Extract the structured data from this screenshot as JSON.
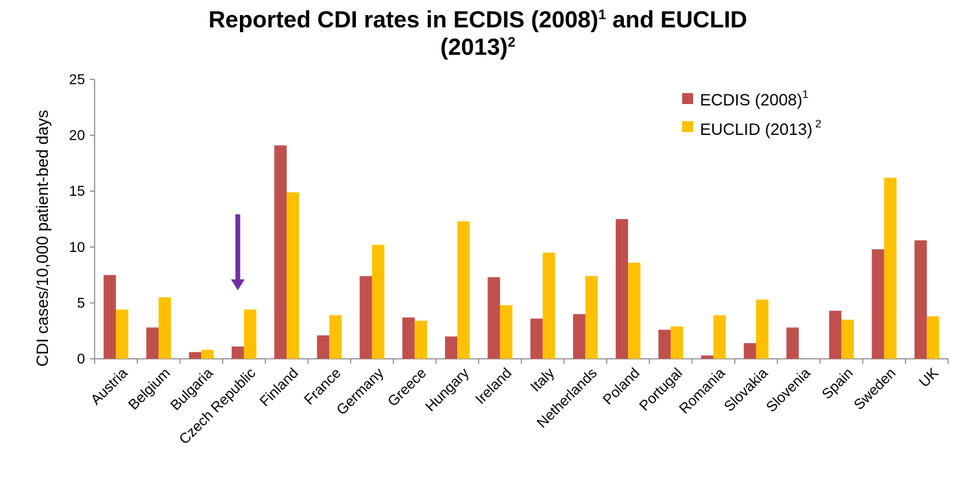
{
  "chart_data": {
    "type": "bar",
    "title_line1": "Reported CDI rates in ECDIS (2008)",
    "title_sup1": "1",
    "title_mid": " and EUCLID",
    "title_line2": "(2013)",
    "title_sup2": "2",
    "ylabel": "CDI cases/10,000 patient-bed days",
    "ylim": [
      0,
      25
    ],
    "yticks": [
      0,
      5,
      10,
      15,
      20,
      25
    ],
    "categories": [
      "Austria",
      "Belgium",
      "Bulgaria",
      "Czech Republic",
      "Finland",
      "France",
      "Germany",
      "Greece",
      "Hungary",
      "Ireland",
      "Italy",
      "Netherlands",
      "Poland",
      "Portugal",
      "Romania",
      "Slovakia",
      "Slovenia",
      "Spain",
      "Sweden",
      "UK"
    ],
    "series": [
      {
        "name": "ECDIS (2008)",
        "name_sup": "1",
        "color": "#c0504d",
        "values": [
          7.5,
          2.8,
          0.6,
          1.1,
          19.1,
          2.1,
          7.4,
          3.7,
          2.0,
          7.3,
          3.6,
          4.0,
          12.5,
          2.6,
          0.3,
          1.4,
          2.8,
          4.3,
          9.8,
          10.6
        ]
      },
      {
        "name": "EUCLID (2013)",
        "name_sup": "2",
        "color": "#ffc000",
        "values": [
          4.4,
          5.5,
          0.8,
          4.4,
          14.9,
          3.9,
          10.2,
          3.4,
          12.3,
          4.8,
          9.5,
          7.4,
          8.6,
          2.9,
          3.9,
          5.3,
          null,
          3.5,
          16.2,
          3.8
        ]
      }
    ],
    "legend_position": "top-right",
    "grid": false,
    "annotation": {
      "type": "arrow",
      "color": "#7030a0",
      "points_to": "Czech Republic"
    }
  }
}
